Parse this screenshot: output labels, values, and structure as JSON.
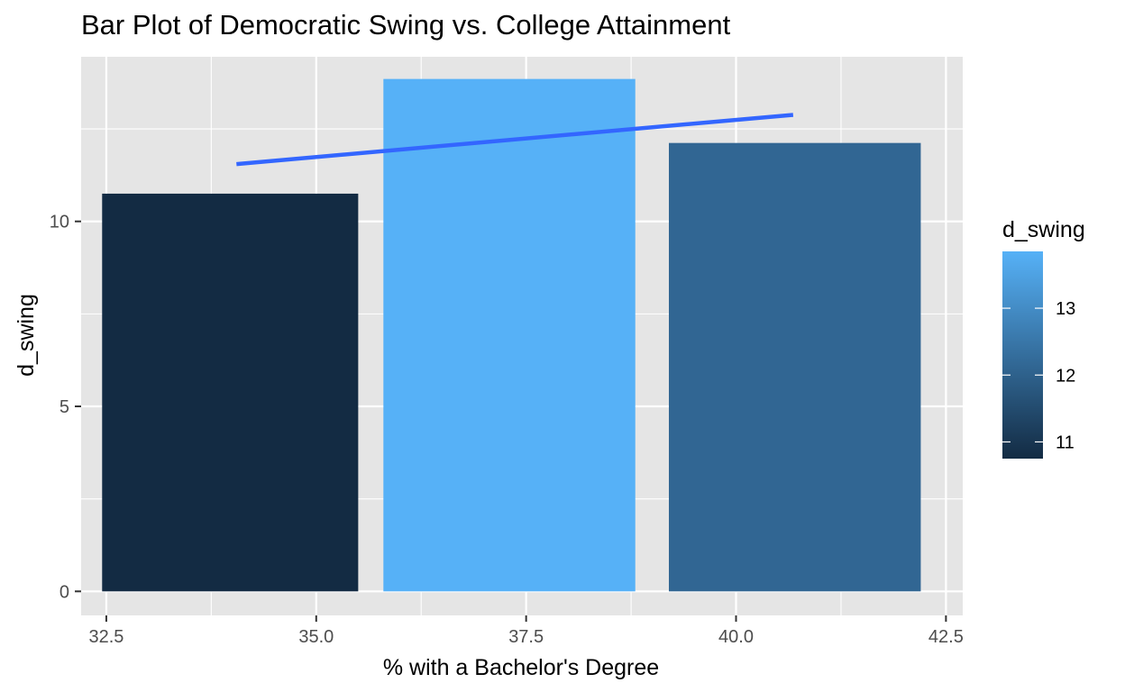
{
  "chart_data": {
    "type": "bar",
    "title": "Bar Plot of Democratic Swing vs. College Attainment",
    "xlabel": "% with a Bachelor's Degree",
    "ylabel": "d_swing",
    "xlim": [
      32.2,
      42.7
    ],
    "ylim": [
      -0.65,
      14.45
    ],
    "x_ticks": [
      32.5,
      35.0,
      37.5,
      40.0,
      42.5
    ],
    "x_tick_labels": [
      "32.5",
      "35.0",
      "37.5",
      "40.0",
      "42.5"
    ],
    "y_ticks": [
      0,
      5,
      10
    ],
    "y_tick_labels": [
      "0",
      "5",
      "10"
    ],
    "bars": [
      {
        "x_start": 32.45,
        "x_end": 35.5,
        "value": 10.75
      },
      {
        "x_start": 35.8,
        "x_end": 38.8,
        "value": 13.85
      },
      {
        "x_start": 39.2,
        "x_end": 42.2,
        "value": 12.12
      }
    ],
    "trend_line": {
      "x": [
        34.05,
        40.68
      ],
      "y": [
        11.55,
        12.88
      ],
      "color": "#3366FF"
    },
    "fill_scale": {
      "name": "d_swing",
      "low": 10.75,
      "high": 13.85,
      "low_color": "#132B43",
      "high_color": "#56B1F7",
      "breaks": [
        11,
        12,
        13
      ],
      "break_labels": [
        "11",
        "12",
        "13"
      ]
    },
    "grid": true,
    "legend_position": "right",
    "panel_color": "#E5E5E5"
  }
}
